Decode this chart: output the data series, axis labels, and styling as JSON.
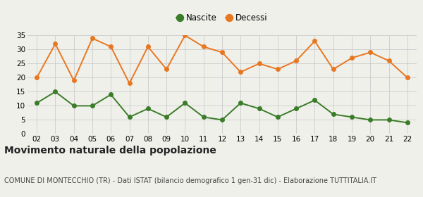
{
  "years": [
    "02",
    "03",
    "04",
    "05",
    "06",
    "07",
    "08",
    "09",
    "10",
    "11",
    "12",
    "13",
    "14",
    "15",
    "16",
    "17",
    "18",
    "19",
    "20",
    "21",
    "22"
  ],
  "nascite": [
    11,
    15,
    10,
    10,
    14,
    6,
    9,
    6,
    11,
    6,
    5,
    11,
    9,
    6,
    9,
    12,
    7,
    6,
    5,
    5,
    4
  ],
  "decessi": [
    20,
    32,
    19,
    34,
    31,
    18,
    31,
    23,
    35,
    31,
    29,
    22,
    25,
    23,
    26,
    33,
    23,
    27,
    29,
    26,
    20
  ],
  "nascite_color": "#3a7d28",
  "decessi_color": "#e87722",
  "background_color": "#f0f0eb",
  "grid_color": "#cccccc",
  "title": "Movimento naturale della popolazione",
  "subtitle": "COMUNE DI MONTECCHIO (TR) - Dati ISTAT (bilancio demografico 1 gen-31 dic) - Elaborazione TUTTITALIA.IT",
  "legend_nascite": "Nascite",
  "legend_decessi": "Decessi",
  "ylim": [
    0,
    35
  ],
  "yticks": [
    0,
    5,
    10,
    15,
    20,
    25,
    30,
    35
  ],
  "title_fontsize": 10,
  "subtitle_fontsize": 7,
  "legend_fontsize": 8.5,
  "axis_fontsize": 7.5,
  "marker_size": 4
}
